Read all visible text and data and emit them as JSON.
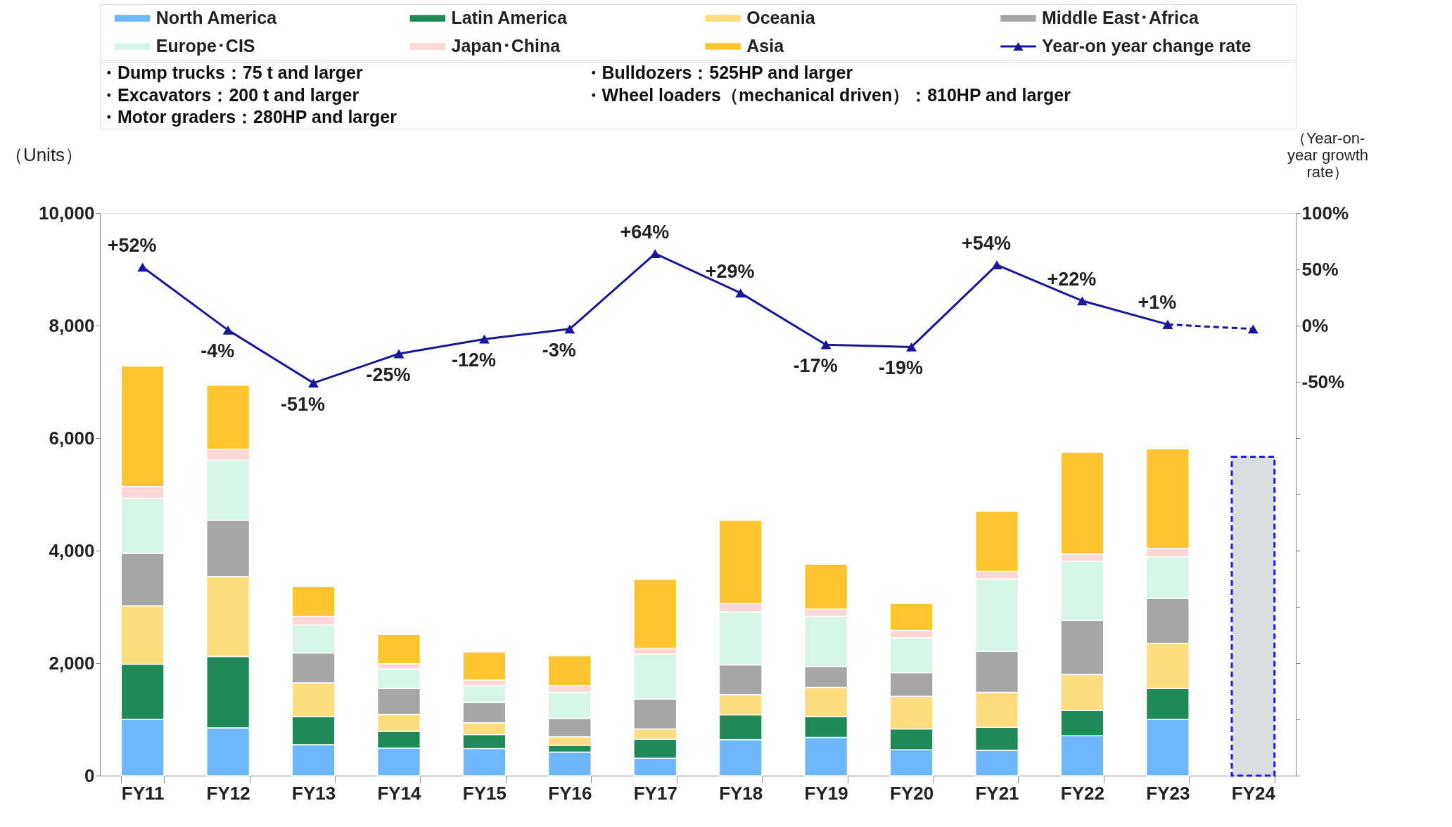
{
  "chart_data": {
    "type": "bar",
    "stacked": true,
    "categories": [
      "FY11",
      "FY12",
      "FY13",
      "FY14",
      "FY15",
      "FY16",
      "FY17",
      "FY18",
      "FY19",
      "FY20",
      "FY21",
      "FY22",
      "FY23",
      "FY24"
    ],
    "ylabel": "（Units）",
    "y2label": "（Year-on-\nyear growth\nrate）",
    "ylim": [
      0,
      10000
    ],
    "yticks": [
      0,
      {
        "value": 2000,
        "label": "2,000"
      },
      {
        "value": 4000,
        "label": "4,000"
      },
      {
        "value": 6000,
        "label": "6,000"
      },
      {
        "value": 8000,
        "label": "8,000"
      },
      {
        "value": 10000,
        "label": "10,000"
      }
    ],
    "y2lim": [
      -400,
      100
    ],
    "y2ticks": [
      {
        "value": -400,
        "label": null
      },
      {
        "value": -350,
        "label": null
      },
      {
        "value": -300,
        "label": null
      },
      {
        "value": -250,
        "label": null
      },
      {
        "value": -200,
        "label": null
      },
      {
        "value": -150,
        "label": null
      },
      {
        "value": -100,
        "label": null
      },
      {
        "value": -50,
        "label": "-50%"
      },
      {
        "value": 0,
        "label": "0%"
      },
      {
        "value": 50,
        "label": "50%"
      },
      {
        "value": 100,
        "label": "100%"
      }
    ],
    "legend": "top",
    "grid": false,
    "annotations": [
      "・Dump trucks：75 t and larger",
      "・Bulldozers：525HP and larger",
      "・Excavators：200 t and larger",
      "・Wheel loaders（mechanical driven）：810HP and larger",
      "・Motor graders：280HP and larger"
    ],
    "series": [
      {
        "name": "North America",
        "color": "#6fb7fc",
        "values": [
          1000,
          850,
          550,
          490,
          480,
          420,
          310,
          640,
          680,
          460,
          450,
          710,
          1000,
          null
        ]
      },
      {
        "name": "Latin America",
        "color": "#208957",
        "values": [
          980,
          1270,
          500,
          300,
          250,
          120,
          340,
          440,
          370,
          370,
          410,
          450,
          550,
          null
        ]
      },
      {
        "name": "Oceania",
        "color": "#fddc80",
        "values": [
          1040,
          1420,
          600,
          300,
          210,
          150,
          180,
          360,
          520,
          580,
          620,
          640,
          800,
          null
        ]
      },
      {
        "name": "Middle East･Africa",
        "color": "#a6a6a6",
        "values": [
          930,
          1000,
          530,
          460,
          360,
          330,
          530,
          530,
          370,
          420,
          730,
          960,
          800,
          null
        ]
      },
      {
        "name": "Europe･CIS",
        "color": "#d6f5e6",
        "values": [
          980,
          1070,
          500,
          350,
          300,
          460,
          800,
          940,
          890,
          620,
          1290,
          1050,
          740,
          null
        ]
      },
      {
        "name": "Japan･China",
        "color": "#fdd6d6",
        "values": [
          210,
          190,
          150,
          90,
          100,
          120,
          100,
          150,
          130,
          130,
          130,
          130,
          150,
          null
        ]
      },
      {
        "name": "Asia",
        "color": "#fec52f",
        "values": [
          2140,
          1140,
          530,
          520,
          500,
          530,
          1230,
          1480,
          800,
          480,
          1070,
          1810,
          1770,
          null
        ]
      },
      {
        "color": "#dcdddf",
        "line_style": "dashed",
        "values": [
          null,
          null,
          null,
          null,
          null,
          null,
          null,
          null,
          null,
          null,
          null,
          null,
          null,
          5670
        ]
      },
      {
        "name": "Year-on year change rate",
        "type": "line",
        "axis": "y2",
        "color": "#1a1696",
        "marker": "triangle",
        "line_style": "solid",
        "values": [
          52,
          -4,
          -51,
          -25,
          -12,
          -3,
          64,
          29,
          -17,
          -19,
          54,
          22,
          1,
          null
        ],
        "value_labels": [
          "+52%",
          "-4%",
          "-51%",
          "-25%",
          "-12%",
          "-3%",
          "+64%",
          "+29%",
          "-17%",
          "-19%",
          "+54%",
          "+22%",
          "+1%",
          null
        ]
      },
      {
        "type": "line",
        "axis": "y2",
        "color": "#1a1696",
        "marker": "triangle",
        "line_style": "dashed",
        "values": [
          null,
          null,
          null,
          null,
          null,
          null,
          null,
          null,
          null,
          null,
          null,
          null,
          1,
          -3
        ]
      }
    ]
  }
}
